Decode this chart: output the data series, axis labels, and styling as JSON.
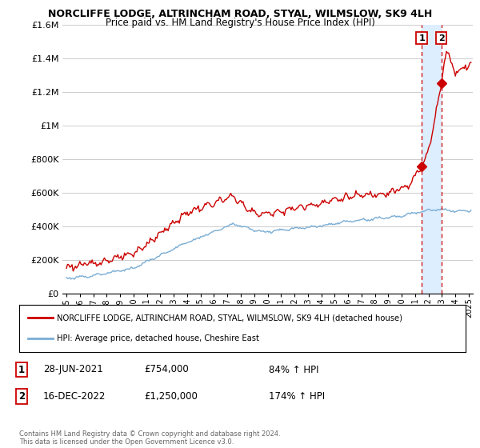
{
  "title": "NORCLIFFE LODGE, ALTRINCHAM ROAD, STYAL, WILMSLOW, SK9 4LH",
  "subtitle": "Price paid vs. HM Land Registry's House Price Index (HPI)",
  "ylim": [
    0,
    1600000
  ],
  "yticks": [
    0,
    200000,
    400000,
    600000,
    800000,
    1000000,
    1200000,
    1400000,
    1600000
  ],
  "ytick_labels": [
    "£0",
    "£200K",
    "£400K",
    "£600K",
    "£800K",
    "£1M",
    "£1.2M",
    "£1.4M",
    "£1.6M"
  ],
  "hpi_color": "#7aadd4",
  "price_color": "#cc0000",
  "dashed_color": "#cc0000",
  "shaded_color": "#ddeeff",
  "legend_label_red": "NORCLIFFE LODGE, ALTRINCHAM ROAD, STYAL, WILMSLOW, SK9 4LH (detached house)",
  "legend_label_blue": "HPI: Average price, detached house, Cheshire East",
  "sale1_label": "1",
  "sale1_date": "28-JUN-2021",
  "sale1_price": "£754,000",
  "sale1_pct": "84% ↑ HPI",
  "sale1_x": 2021.49,
  "sale1_y": 754000,
  "sale2_label": "2",
  "sale2_date": "16-DEC-2022",
  "sale2_price": "£1,250,000",
  "sale2_pct": "174% ↑ HPI",
  "sale2_x": 2022.96,
  "sale2_y": 1250000,
  "footnote": "Contains HM Land Registry data © Crown copyright and database right 2024.\nThis data is licensed under the Open Government Licence v3.0.",
  "xmin": 1995,
  "xmax": 2025
}
